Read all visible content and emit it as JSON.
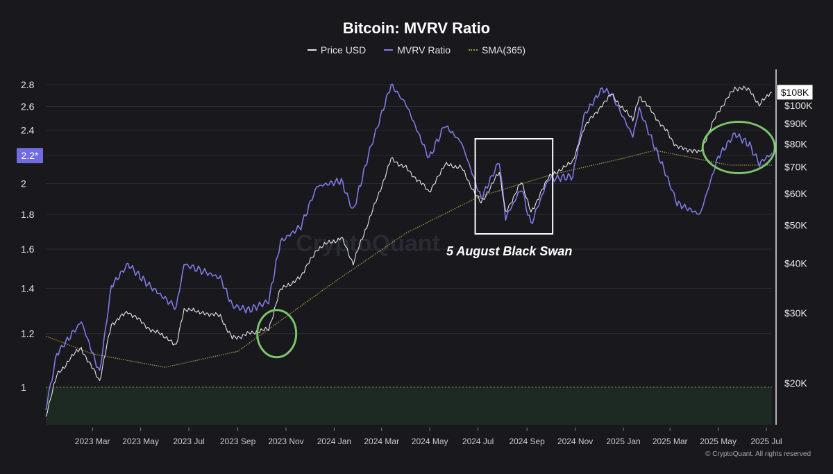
{
  "chart_data": {
    "type": "line",
    "title": "Bitcoin: MVRV Ratio",
    "legend": {
      "placement": "top-center"
    },
    "x_axis": {
      "ticks": [
        "2023 Mar",
        "2023 May",
        "2023 Jul",
        "2023 Sep",
        "2023 Nov",
        "2024 Jan",
        "2024 Mar",
        "2024 May",
        "2024 Jul",
        "2024 Sep",
        "2024 Nov",
        "2025 Jan",
        "2025 Mar",
        "2025 May",
        "2025 Jul"
      ],
      "range": [
        "2023-01-01",
        "2025-07-08"
      ]
    },
    "y_axis_left": {
      "label": "MVRV Ratio",
      "scale": "log",
      "ticks": [
        "1",
        "1.2",
        "1.4",
        "1.6",
        "1.8",
        "2",
        "2.2",
        "2.4",
        "2.6",
        "2.8"
      ],
      "range": [
        0.88,
        2.95
      ],
      "current_value": "2.2*"
    },
    "y_axis_right": {
      "label": "Price USD",
      "scale": "log",
      "ticks": [
        "$20K",
        "$30K",
        "$40K",
        "$50K",
        "$60K",
        "$70K",
        "$80K",
        "$90K",
        "$100K"
      ],
      "current_value": "$108K"
    },
    "reference_line": {
      "y": 1
    },
    "grid": true,
    "series": [
      {
        "name": "Price USD",
        "color": "#e6e6ea",
        "axis": "right",
        "points": [
          [
            "2023-01-01",
            16600
          ],
          [
            "2023-01-15",
            20900
          ],
          [
            "2023-02-01",
            23100
          ],
          [
            "2023-02-15",
            24500
          ],
          [
            "2023-03-10",
            20200
          ],
          [
            "2023-03-25",
            28000
          ],
          [
            "2023-04-15",
            30400
          ],
          [
            "2023-05-10",
            27600
          ],
          [
            "2023-06-15",
            25100
          ],
          [
            "2023-06-25",
            30500
          ],
          [
            "2023-07-15",
            30300
          ],
          [
            "2023-08-10",
            29400
          ],
          [
            "2023-08-25",
            26000
          ],
          [
            "2023-09-15",
            26600
          ],
          [
            "2023-10-10",
            27400
          ],
          [
            "2023-10-25",
            34500
          ],
          [
            "2023-11-20",
            37000
          ],
          [
            "2023-12-10",
            43500
          ],
          [
            "2024-01-10",
            46600
          ],
          [
            "2024-01-25",
            40000
          ],
          [
            "2024-02-15",
            52000
          ],
          [
            "2024-03-13",
            73000
          ],
          [
            "2024-04-01",
            69700
          ],
          [
            "2024-04-30",
            60600
          ],
          [
            "2024-05-20",
            71000
          ],
          [
            "2024-06-10",
            69600
          ],
          [
            "2024-07-05",
            56600
          ],
          [
            "2024-07-28",
            68000
          ],
          [
            "2024-08-05",
            54000
          ],
          [
            "2024-08-25",
            64000
          ],
          [
            "2024-09-06",
            53900
          ],
          [
            "2024-09-28",
            65800
          ],
          [
            "2024-10-29",
            72300
          ],
          [
            "2024-11-12",
            88000
          ],
          [
            "2024-12-05",
            100000
          ],
          [
            "2024-12-17",
            106500
          ],
          [
            "2025-01-13",
            92000
          ],
          [
            "2025-01-21",
            106000
          ],
          [
            "2025-02-25",
            86000
          ],
          [
            "2025-03-10",
            78500
          ],
          [
            "2025-04-08",
            76300
          ],
          [
            "2025-05-01",
            96500
          ],
          [
            "2025-05-22",
            111000
          ],
          [
            "2025-06-10",
            109500
          ],
          [
            "2025-06-22",
            100500
          ],
          [
            "2025-07-08",
            108000
          ]
        ]
      },
      {
        "name": "MVRV Ratio",
        "color": "#7f7be6",
        "axis": "left",
        "points": [
          [
            "2023-01-01",
            0.93
          ],
          [
            "2023-01-15",
            1.12
          ],
          [
            "2023-02-01",
            1.19
          ],
          [
            "2023-02-15",
            1.25
          ],
          [
            "2023-03-10",
            1.05
          ],
          [
            "2023-03-25",
            1.41
          ],
          [
            "2023-04-15",
            1.52
          ],
          [
            "2023-05-10",
            1.42
          ],
          [
            "2023-06-15",
            1.31
          ],
          [
            "2023-06-25",
            1.52
          ],
          [
            "2023-07-15",
            1.49
          ],
          [
            "2023-08-10",
            1.45
          ],
          [
            "2023-08-25",
            1.32
          ],
          [
            "2023-09-15",
            1.3
          ],
          [
            "2023-10-10",
            1.34
          ],
          [
            "2023-10-25",
            1.64
          ],
          [
            "2023-11-20",
            1.73
          ],
          [
            "2023-12-10",
            1.98
          ],
          [
            "2024-01-10",
            2.02
          ],
          [
            "2024-01-25",
            1.82
          ],
          [
            "2024-02-15",
            2.24
          ],
          [
            "2024-03-13",
            2.8
          ],
          [
            "2024-04-01",
            2.62
          ],
          [
            "2024-04-30",
            2.18
          ],
          [
            "2024-05-20",
            2.44
          ],
          [
            "2024-06-10",
            2.3
          ],
          [
            "2024-07-05",
            1.9
          ],
          [
            "2024-07-28",
            2.16
          ],
          [
            "2024-08-05",
            1.78
          ],
          [
            "2024-08-25",
            1.97
          ],
          [
            "2024-09-06",
            1.74
          ],
          [
            "2024-09-28",
            2.03
          ],
          [
            "2024-10-29",
            2.05
          ],
          [
            "2024-11-12",
            2.52
          ],
          [
            "2024-12-05",
            2.76
          ],
          [
            "2024-12-17",
            2.71
          ],
          [
            "2025-01-13",
            2.35
          ],
          [
            "2025-01-21",
            2.58
          ],
          [
            "2025-02-25",
            2.05
          ],
          [
            "2025-03-10",
            1.87
          ],
          [
            "2025-04-08",
            1.8
          ],
          [
            "2025-05-01",
            2.19
          ],
          [
            "2025-05-22",
            2.37
          ],
          [
            "2025-06-10",
            2.28
          ],
          [
            "2025-06-22",
            2.14
          ],
          [
            "2025-07-08",
            2.22
          ]
        ]
      },
      {
        "name": "SMA(365)",
        "color": "#a69a45",
        "axis": "left",
        "style": "dotted",
        "points": [
          [
            "2023-01-01",
            1.19
          ],
          [
            "2023-03-01",
            1.12
          ],
          [
            "2023-06-01",
            1.07
          ],
          [
            "2023-09-01",
            1.13
          ],
          [
            "2023-10-15",
            1.23
          ],
          [
            "2024-01-01",
            1.43
          ],
          [
            "2024-04-01",
            1.69
          ],
          [
            "2024-07-01",
            1.91
          ],
          [
            "2024-10-01",
            2.06
          ],
          [
            "2025-01-01",
            2.18
          ],
          [
            "2025-02-10",
            2.24
          ],
          [
            "2025-04-01",
            2.18
          ],
          [
            "2025-05-15",
            2.13
          ],
          [
            "2025-07-08",
            2.13
          ]
        ]
      }
    ],
    "annotations": [
      {
        "text": "5 August Black Swan",
        "shape": "rectangle",
        "x_start": "2024-07-01",
        "x_end": "2024-09-30"
      },
      {
        "shape": "ellipse",
        "x_center": "2023-10-15",
        "y_center": 1.2
      },
      {
        "shape": "ellipse",
        "x_center": "2025-05-20",
        "y_center": 2.24
      }
    ]
  },
  "watermark": "CryptoQuant",
  "credit": "© CryptoQuant. All rights reserved"
}
